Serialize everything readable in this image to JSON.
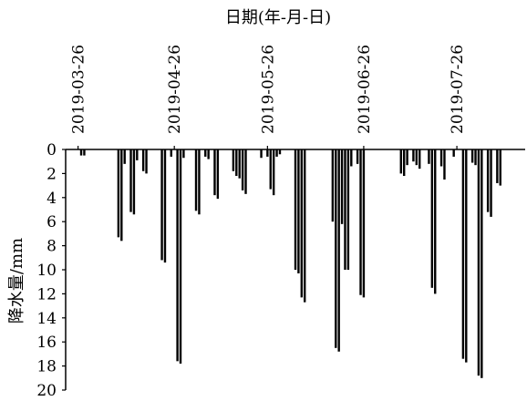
{
  "chart_data": {
    "type": "bar",
    "orientation": "inverted",
    "xlabel": "日期(年-月-日)",
    "ylabel": "降水量/mm",
    "x_tick_labels": [
      "2019-03-26",
      "2019-04-26",
      "2019-05-26",
      "2019-06-26",
      "2019-07-26"
    ],
    "x_tick_dates": [
      "2019-03-26",
      "2019-04-26",
      "2019-05-26",
      "2019-06-26",
      "2019-07-26"
    ],
    "xlim": [
      "2019-03-22",
      "2019-08-17"
    ],
    "ylim": [
      0,
      20
    ],
    "y_ticks": [
      0,
      2,
      4,
      6,
      8,
      10,
      12,
      14,
      16,
      18,
      20
    ],
    "y_tick_labels": [
      "0",
      "2",
      "4",
      "6",
      "8",
      "10",
      "12",
      "14",
      "16",
      "18",
      "20"
    ],
    "bar_color": "#000000",
    "series": [
      {
        "dates": [
          "2019-03-27",
          "2019-03-28",
          "2019-04-08",
          "2019-04-09",
          "2019-04-10",
          "2019-04-12",
          "2019-04-13",
          "2019-04-14",
          "2019-04-16",
          "2019-04-17",
          "2019-04-22",
          "2019-04-23",
          "2019-04-25",
          "2019-04-27",
          "2019-04-28",
          "2019-04-29",
          "2019-05-03",
          "2019-05-04",
          "2019-05-06",
          "2019-05-07",
          "2019-05-09",
          "2019-05-10",
          "2019-05-15",
          "2019-05-16",
          "2019-05-17",
          "2019-05-18",
          "2019-05-19",
          "2019-05-24",
          "2019-05-26",
          "2019-05-27",
          "2019-05-28",
          "2019-05-29",
          "2019-05-30",
          "2019-06-04",
          "2019-06-05",
          "2019-06-06",
          "2019-06-07",
          "2019-06-16",
          "2019-06-17",
          "2019-06-18",
          "2019-06-19",
          "2019-06-20",
          "2019-06-21",
          "2019-06-22",
          "2019-06-24",
          "2019-06-25",
          "2019-06-26",
          "2019-07-08",
          "2019-07-09",
          "2019-07-10",
          "2019-07-12",
          "2019-07-13",
          "2019-07-14",
          "2019-07-17",
          "2019-07-18",
          "2019-07-19",
          "2019-07-21",
          "2019-07-22",
          "2019-07-25",
          "2019-07-28",
          "2019-07-29",
          "2019-07-31",
          "2019-08-01",
          "2019-08-02",
          "2019-08-03",
          "2019-08-05",
          "2019-08-06",
          "2019-08-08",
          "2019-08-09"
        ],
        "values": [
          0.5,
          0.5,
          7.3,
          7.6,
          1.2,
          5.2,
          5.4,
          0.9,
          1.8,
          2.0,
          9.2,
          9.4,
          0.6,
          17.6,
          17.8,
          0.7,
          5.1,
          5.4,
          0.6,
          0.8,
          3.8,
          4.1,
          1.8,
          2.2,
          2.4,
          3.4,
          3.7,
          0.7,
          0.6,
          3.3,
          3.8,
          0.6,
          0.4,
          10.0,
          10.3,
          12.3,
          12.7,
          6.0,
          16.5,
          16.8,
          6.2,
          10.0,
          10.0,
          1.4,
          1.2,
          12.1,
          12.3,
          2.0,
          2.2,
          1.3,
          1.0,
          1.3,
          1.6,
          1.2,
          11.5,
          12.0,
          1.4,
          2.5,
          0.6,
          17.4,
          17.7,
          1.1,
          1.3,
          18.8,
          19.0,
          5.2,
          5.6,
          2.8,
          3.0
        ]
      }
    ]
  }
}
